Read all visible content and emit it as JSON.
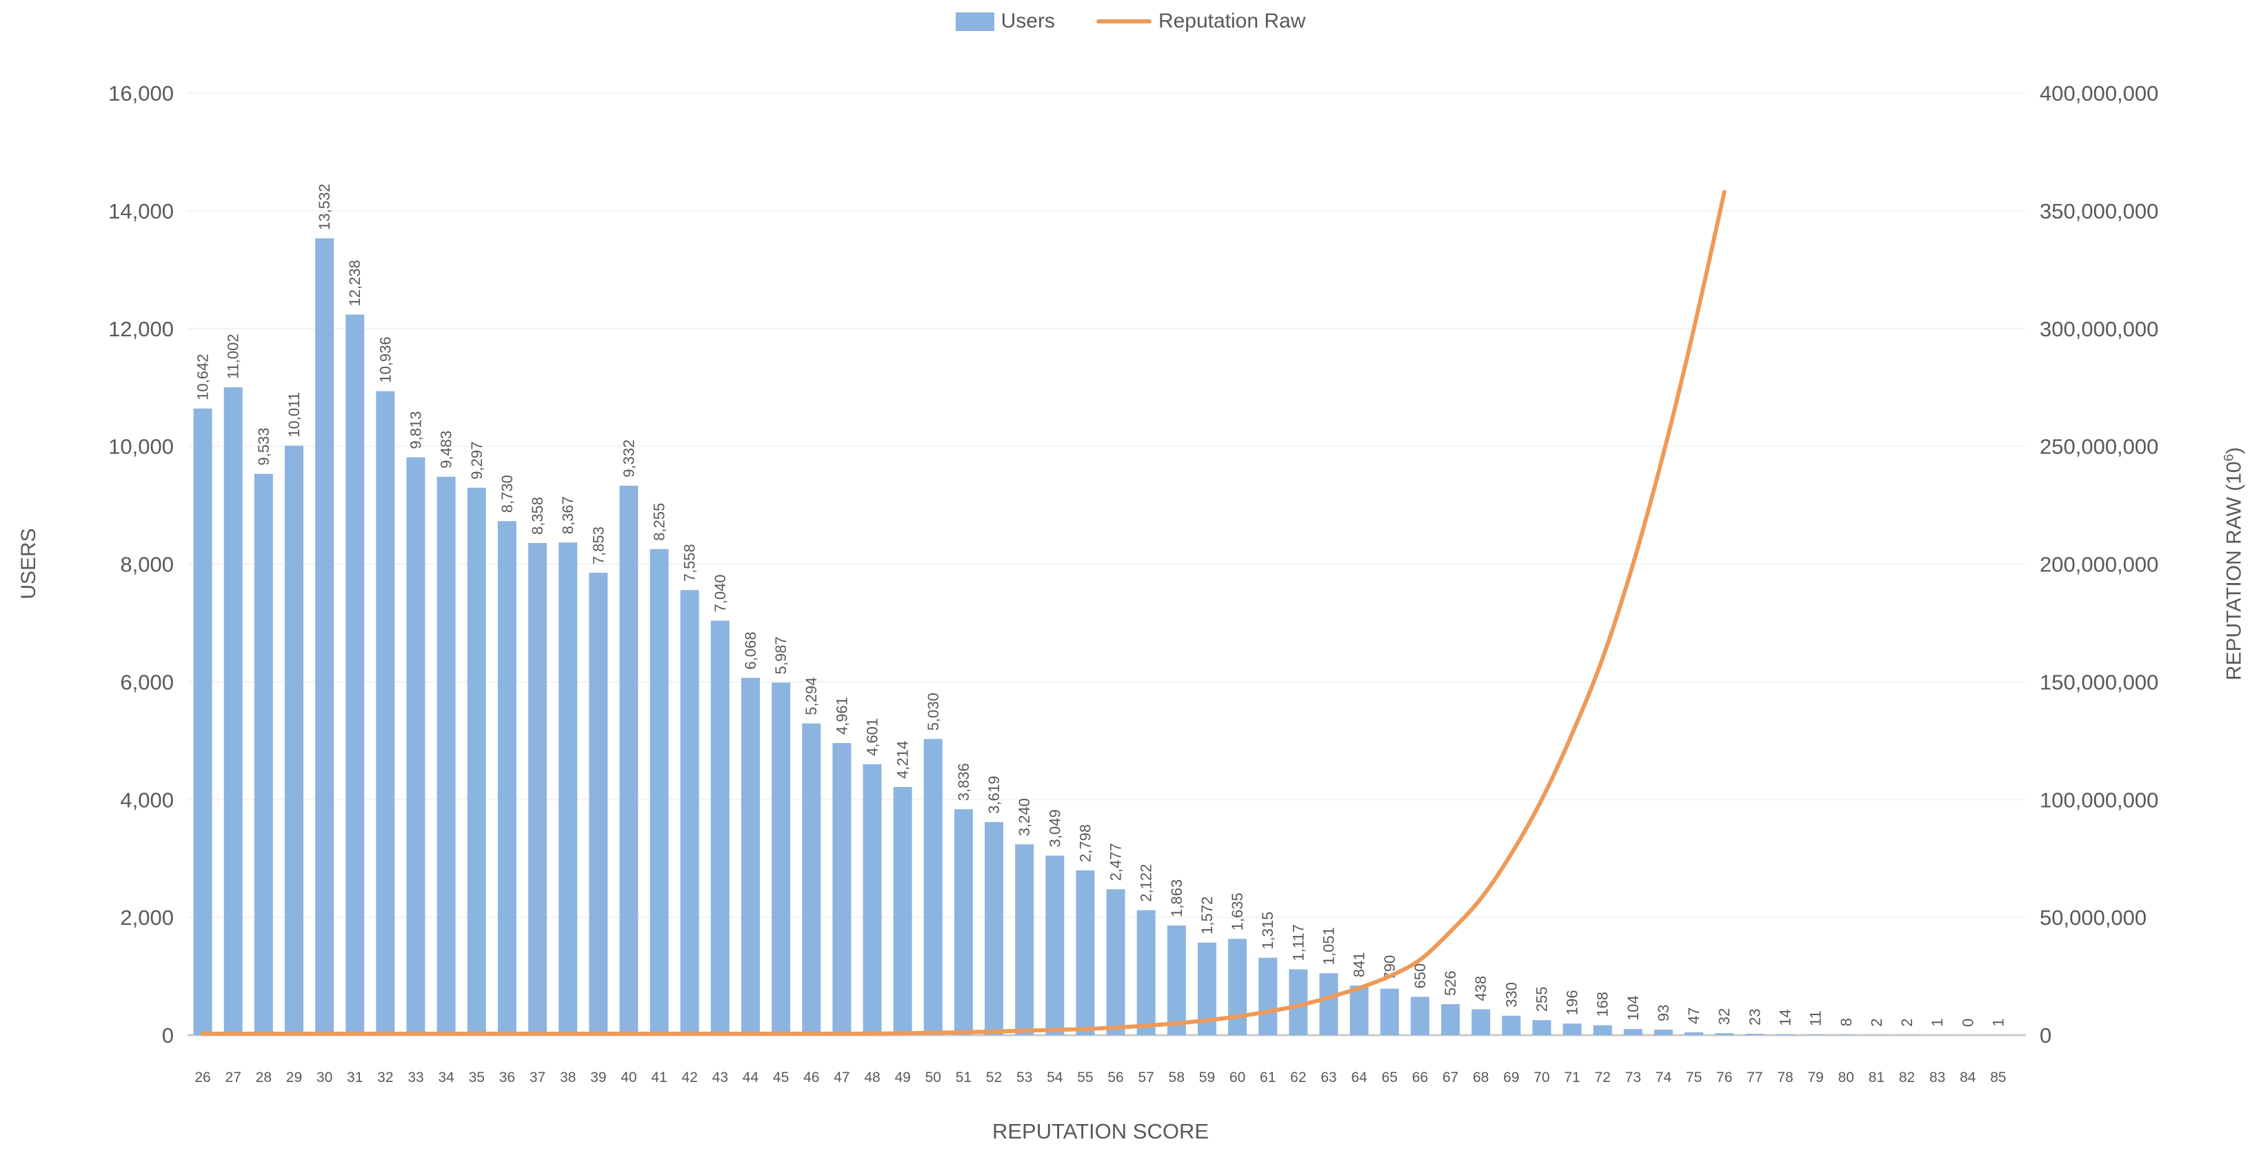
{
  "legend": {
    "items": [
      {
        "label": "Users",
        "swatch": "bar",
        "color": "#8CB4E0"
      },
      {
        "label": "Reputation Raw",
        "swatch": "line",
        "color": "#EE9A58"
      }
    ],
    "position": "top-center"
  },
  "axes": {
    "right_title_pre": "REPUTATION RAW (10",
    "right_title_sup": "6",
    "right_title_post": ")"
  },
  "chart_data": {
    "type": "combo-bar-line",
    "title": "",
    "xlabel": "REPUTATION SCORE",
    "x": [
      26,
      27,
      28,
      29,
      30,
      31,
      32,
      33,
      34,
      35,
      36,
      37,
      38,
      39,
      40,
      41,
      42,
      43,
      44,
      45,
      46,
      47,
      48,
      49,
      50,
      51,
      52,
      53,
      54,
      55,
      56,
      57,
      58,
      59,
      60,
      61,
      62,
      63,
      64,
      65,
      66,
      67,
      68,
      69,
      70,
      71,
      72,
      73,
      74,
      75,
      76,
      77,
      78,
      79,
      80,
      81,
      82,
      83,
      84,
      85
    ],
    "left_axis": {
      "title": "USERS",
      "min": 0,
      "max": 16000,
      "step": 2000
    },
    "right_axis": {
      "title": "REPUTATION RAW (10⁶)",
      "min": 0,
      "max": 400000000,
      "step": 50000000
    },
    "grid": true,
    "bar_value_labels": true,
    "text_color": "#595959",
    "gridline_color": "#F2F2F2",
    "baseline_color": "#C9C9C9",
    "series": [
      {
        "name": "Users",
        "type": "bar",
        "y_axis": "left",
        "color": "#8CB4E0",
        "values": [
          10642,
          11002,
          9533,
          10011,
          13532,
          12238,
          10936,
          9813,
          9483,
          9297,
          8730,
          8358,
          8367,
          7853,
          9332,
          8255,
          7558,
          7040,
          6068,
          5987,
          5294,
          4961,
          4601,
          4214,
          5030,
          3836,
          3619,
          3240,
          3049,
          2798,
          2477,
          2122,
          1863,
          1572,
          1635,
          1315,
          1117,
          1051,
          841,
          790,
          650,
          526,
          438,
          330,
          255,
          196,
          168,
          104,
          93,
          47,
          32,
          23,
          14,
          11,
          8,
          2,
          2,
          1,
          0,
          1
        ]
      },
      {
        "name": "Reputation Raw",
        "type": "line",
        "y_axis": "right",
        "color": "#EE9A58",
        "values": [
          5000,
          6000,
          7000,
          9000,
          11000,
          14000,
          18000,
          22000,
          28000,
          35000,
          44000,
          55000,
          70000,
          85000,
          105000,
          130000,
          160000,
          200000,
          260000,
          320000,
          400000,
          500000,
          620000,
          780000,
          970000,
          1220000,
          1520000,
          1900000,
          2200000,
          2600000,
          3200000,
          4000000,
          5000000,
          6300000,
          7900000,
          10000000,
          12500000,
          16000000,
          20000000,
          25000000,
          32000000,
          44000000,
          58000000,
          77000000,
          100000000,
          128000000,
          160000000,
          200000000,
          247000000,
          300000000,
          358000000,
          null,
          null,
          null,
          null,
          null,
          null,
          null,
          null,
          null
        ]
      }
    ]
  }
}
